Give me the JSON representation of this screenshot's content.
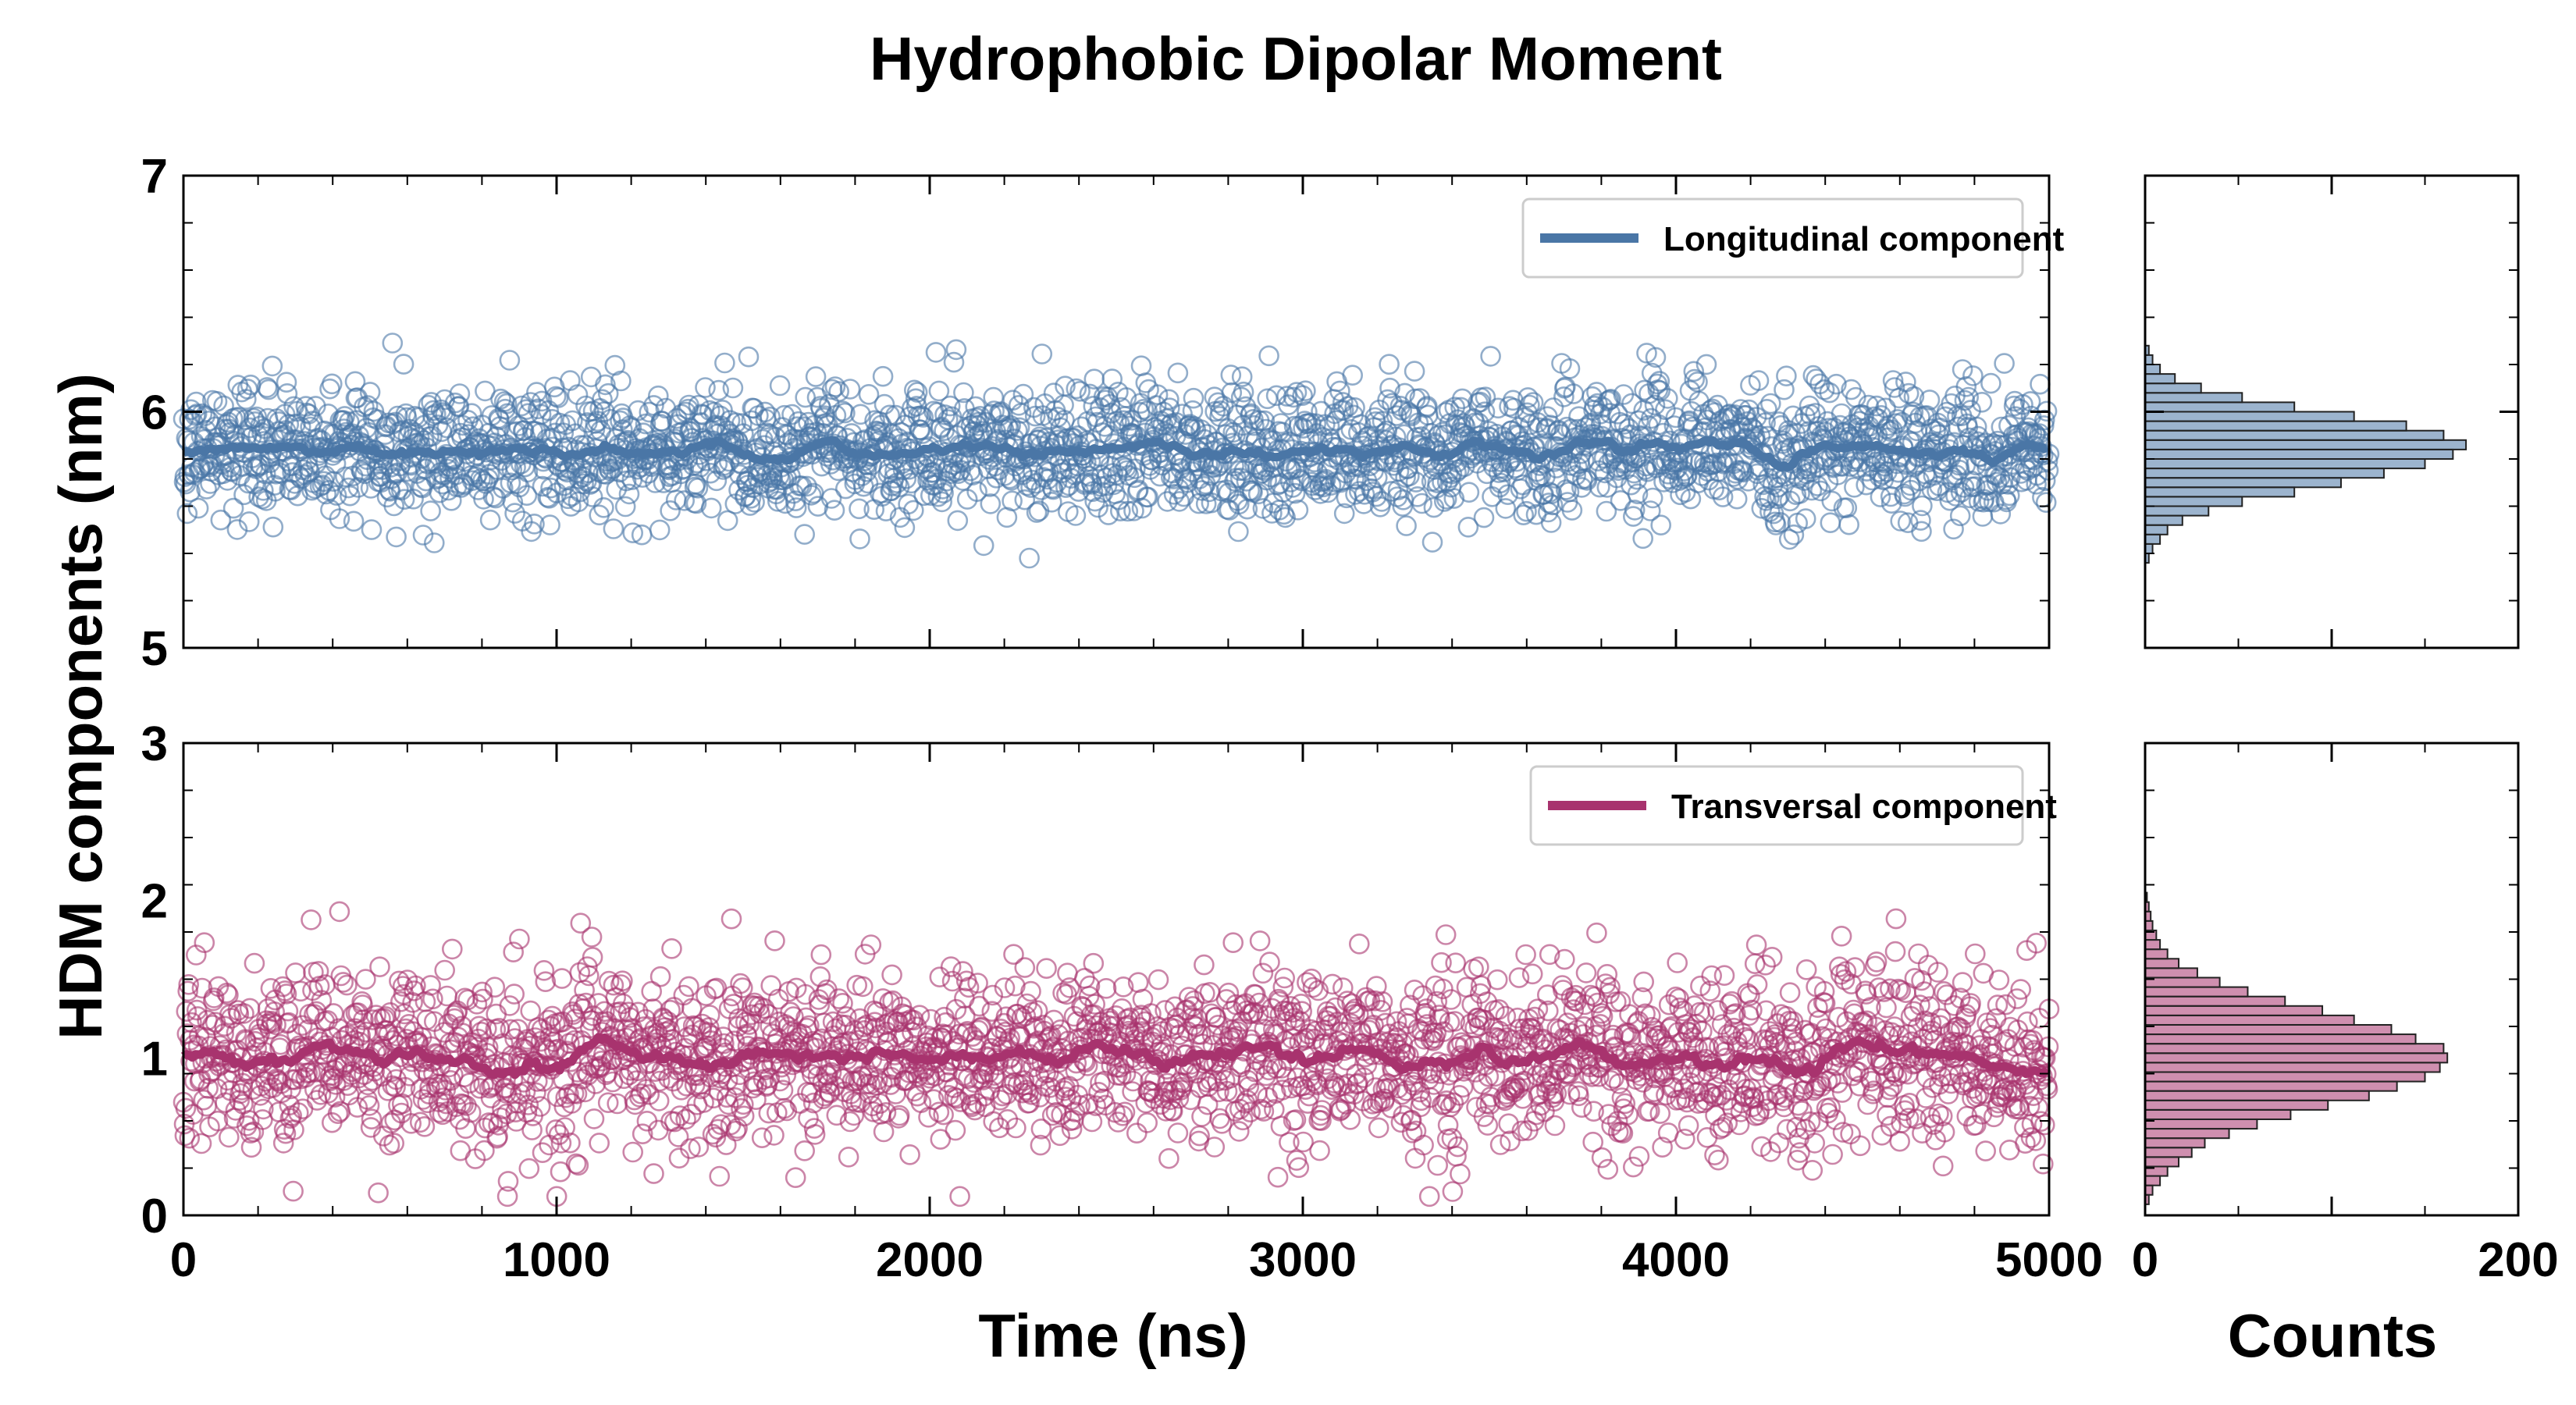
{
  "chart_data": {
    "type": "scatter",
    "title": "Hydrophobic Dipolar Moment",
    "xlabel": "Time (ns)",
    "ylabel": "HDM components (nm)",
    "hist_xlabel": "Counts",
    "xlim": [
      0,
      5000
    ],
    "x_ticks": [
      "0",
      "1000",
      "2000",
      "3000",
      "4000",
      "5000"
    ],
    "hist_xlim": [
      0,
      200
    ],
    "hist_x_ticks": [
      "0",
      "200"
    ],
    "grid": false,
    "legend_position": "top-right",
    "n_points": 2500,
    "panels": [
      {
        "series_name": "Longitudinal component",
        "color": "#4a76a6",
        "ylim": [
          5,
          7
        ],
        "y_ticks": [
          "5",
          "6",
          "7"
        ],
        "scatter_mean": 5.84,
        "scatter_std": 0.14,
        "scatter_range": [
          5.35,
          6.37
        ],
        "running_average_mean": 5.84,
        "histogram": {
          "bin_centers": [
            5.38,
            5.42,
            5.46,
            5.5,
            5.54,
            5.58,
            5.62,
            5.66,
            5.7,
            5.74,
            5.78,
            5.82,
            5.86,
            5.9,
            5.94,
            5.98,
            6.02,
            6.06,
            6.1,
            6.14,
            6.18,
            6.22,
            6.26
          ],
          "counts": [
            2,
            4,
            8,
            12,
            20,
            34,
            52,
            80,
            105,
            128,
            150,
            165,
            172,
            160,
            140,
            112,
            80,
            52,
            30,
            16,
            8,
            4,
            2
          ]
        }
      },
      {
        "series_name": "Transversal component",
        "color": "#a8336e",
        "ylim": [
          0,
          3
        ],
        "y_ticks": [
          "0",
          "1",
          "2",
          "3"
        ],
        "scatter_mean": 1.0,
        "scatter_std": 0.28,
        "scatter_range": [
          0.12,
          2.02
        ],
        "running_average_mean": 1.0,
        "histogram": {
          "bin_centers": [
            0.1,
            0.16,
            0.22,
            0.28,
            0.34,
            0.4,
            0.46,
            0.52,
            0.58,
            0.64,
            0.7,
            0.76,
            0.82,
            0.88,
            0.94,
            1.0,
            1.06,
            1.12,
            1.18,
            1.24,
            1.3,
            1.36,
            1.42,
            1.48,
            1.54,
            1.6,
            1.66,
            1.72,
            1.78,
            1.84,
            1.9,
            1.96,
            2.02
          ],
          "counts": [
            2,
            4,
            8,
            12,
            18,
            25,
            32,
            45,
            60,
            78,
            98,
            120,
            135,
            150,
            158,
            162,
            160,
            145,
            132,
            112,
            95,
            75,
            55,
            40,
            28,
            18,
            12,
            8,
            6,
            4,
            3,
            2,
            1
          ]
        }
      }
    ]
  }
}
